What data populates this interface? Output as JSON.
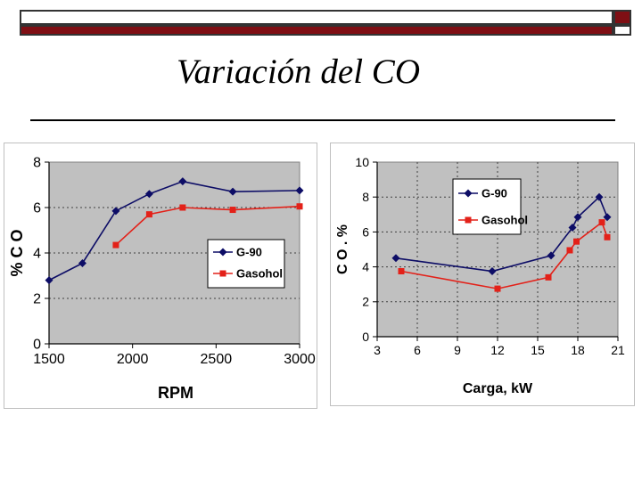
{
  "slide": {
    "title": "Variación del CO"
  },
  "colors": {
    "series1": "#0d0d66",
    "series2": "#e32119",
    "plot_bg": "#c0c0c0",
    "grid": "#000000",
    "accent": "#7f0f14"
  },
  "chart_data": [
    {
      "type": "line",
      "title": "",
      "xlabel": "RPM",
      "ylabel": "% C O",
      "xlim": [
        1500,
        3000
      ],
      "ylim": [
        0,
        8
      ],
      "xticks": [
        "1500",
        "2000",
        "2500",
        "3000"
      ],
      "yticks": [
        "0",
        "2",
        "4",
        "6",
        "8"
      ],
      "legend": "bottom-right",
      "series": [
        {
          "name": "G-90",
          "x": [
            1500,
            1700,
            1900,
            2100,
            2300,
            2600,
            3000
          ],
          "values": [
            2.8,
            3.55,
            5.85,
            6.6,
            7.15,
            6.7,
            6.75
          ],
          "marker": "diamond"
        },
        {
          "name": "Gasohol",
          "x": [
            1900,
            2100,
            2300,
            2600,
            3000
          ],
          "values": [
            4.35,
            5.7,
            6.0,
            5.9,
            6.05
          ],
          "marker": "square"
        }
      ]
    },
    {
      "type": "line",
      "title": "",
      "xlabel": "Carga, kW",
      "ylabel": "C O . %",
      "xlim": [
        3,
        21
      ],
      "ylim": [
        0,
        10
      ],
      "xticks": [
        "3",
        "6",
        "9",
        "12",
        "15",
        "18",
        "21"
      ],
      "yticks": [
        "0",
        "2",
        "4",
        "6",
        "8",
        "10"
      ],
      "legend": "top-left",
      "series": [
        {
          "name": "G-90",
          "x": [
            4.4,
            11.6,
            16,
            17.6,
            18,
            19.6,
            20.2
          ],
          "values": [
            4.5,
            3.75,
            4.65,
            6.25,
            6.85,
            8.0,
            6.85
          ],
          "marker": "diamond"
        },
        {
          "name": "Gasohol",
          "x": [
            4.8,
            12,
            15.8,
            17.4,
            17.9,
            19.8,
            20.2
          ],
          "values": [
            3.75,
            2.75,
            3.4,
            4.95,
            5.45,
            6.55,
            5.7
          ],
          "marker": "square"
        }
      ]
    }
  ]
}
